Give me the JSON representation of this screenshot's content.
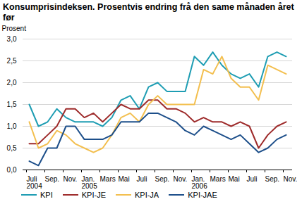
{
  "chart_data": {
    "type": "line",
    "title": "Konsumprisindeksen. Prosentvis endring frå den same månaden året før",
    "y_label": "Prosent",
    "categories": [
      "Juli\n2004",
      null,
      "Sep.",
      null,
      "Nov.",
      null,
      "Jan.\n2005",
      null,
      "Mars",
      null,
      "Mai",
      null,
      "Juli",
      null,
      "Sep.",
      null,
      "Nov.",
      null,
      "Jan.\n2006",
      null,
      "Mars",
      null,
      "Mai",
      null,
      "Juli",
      null,
      "Sep.",
      null,
      "Nov."
    ],
    "series": [
      {
        "name": "KPI",
        "color": "#1e9db3",
        "values": [
          1.5,
          1.0,
          1.1,
          1.4,
          1.2,
          1.1,
          1.1,
          1.1,
          1.0,
          1.2,
          1.6,
          1.7,
          1.4,
          1.9,
          2.0,
          1.8,
          1.8,
          1.8,
          2.6,
          2.4,
          2.7,
          2.4,
          2.2,
          2.1,
          2.2,
          1.9,
          2.6,
          2.7,
          2.6
        ]
      },
      {
        "name": "KPI-JE",
        "color": "#9e2b2b",
        "values": [
          0.6,
          0.6,
          0.8,
          1.0,
          1.4,
          1.4,
          1.2,
          1.3,
          1.1,
          1.3,
          1.5,
          1.4,
          1.4,
          1.6,
          1.6,
          1.4,
          1.4,
          1.3,
          1.1,
          1.2,
          1.1,
          1.1,
          1.0,
          1.1,
          1.0,
          0.5,
          0.8,
          1.0,
          1.1
        ]
      },
      {
        "name": "KPI-JA",
        "color": "#f3bf4f",
        "values": [
          1.1,
          0.5,
          0.6,
          0.9,
          0.8,
          0.6,
          0.5,
          0.4,
          0.5,
          0.8,
          1.2,
          1.3,
          1.1,
          1.5,
          1.7,
          1.5,
          1.5,
          1.5,
          1.5,
          2.3,
          2.2,
          2.6,
          2.1,
          1.9,
          1.9,
          1.6,
          2.4,
          2.3,
          2.2
        ]
      },
      {
        "name": "KPI-JAE",
        "color": "#1d4f8a",
        "values": [
          0.2,
          0.1,
          0.5,
          0.5,
          1.0,
          1.0,
          0.7,
          0.7,
          0.7,
          0.8,
          1.1,
          1.1,
          1.1,
          1.3,
          1.3,
          1.2,
          1.1,
          0.9,
          0.8,
          1.0,
          0.9,
          0.8,
          0.7,
          0.8,
          0.6,
          0.4,
          0.5,
          0.7,
          0.8
        ]
      }
    ],
    "ylim": [
      0,
      3
    ],
    "yticks": [
      {
        "value": 0,
        "label": "0,0"
      },
      {
        "value": 0.5,
        "label": "0,5"
      },
      {
        "value": 1,
        "label": "1,0"
      },
      {
        "value": 1.5,
        "label": "1,5"
      },
      {
        "value": 2,
        "label": "2,0"
      },
      {
        "value": 2.5,
        "label": "2,5"
      },
      {
        "value": 3,
        "label": "3,0"
      }
    ],
    "grid": true,
    "legend": "bottom"
  }
}
